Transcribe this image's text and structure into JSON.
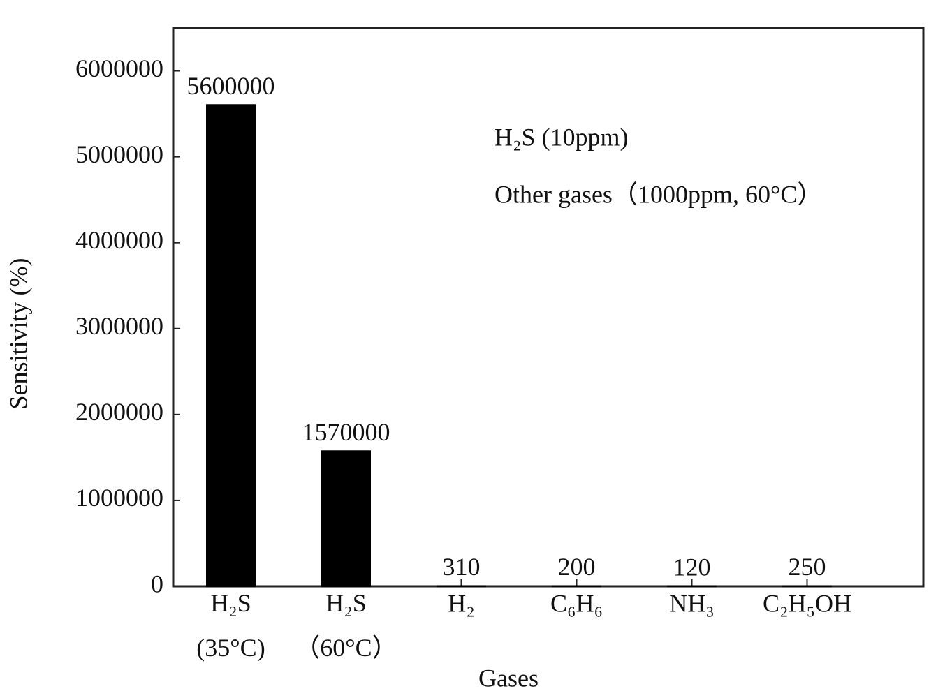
{
  "chart_data": {
    "type": "bar",
    "x_label": "Gases",
    "y_label": "Sensitivity (%)",
    "annotations": [
      "H₂S (10ppm)",
      "Other gases（1000ppm, 60°C）"
    ],
    "categories": [
      "H₂S (35°C)",
      "H₂S（60°C）",
      "H₂",
      "C₆H₆",
      "NH₃",
      "C₂H₅OH"
    ],
    "values": [
      5600000,
      1570000,
      310,
      200,
      120,
      250
    ],
    "color": "#000000",
    "ylim": [
      0,
      6500000
    ],
    "yticks": [
      0,
      1000000,
      2000000,
      3000000,
      4000000,
      5000000,
      6000000
    ],
    "grid": false
  }
}
